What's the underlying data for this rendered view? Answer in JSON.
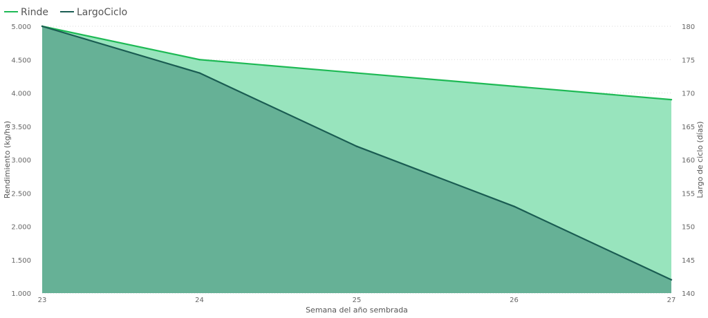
{
  "chart_data": {
    "type": "area",
    "x": [
      23,
      24,
      25,
      26,
      27
    ],
    "xlabel": "Semana del año sembrada",
    "xticks": [
      "23",
      "24",
      "25",
      "26",
      "27"
    ],
    "ylabel_left": "Rendimiento (kg/ha)",
    "ylabel_right": "Largo de ciclo (días)",
    "ylim_left": [
      1000,
      5000
    ],
    "ylim_right": [
      140,
      180
    ],
    "yticks_left": [
      "1.000",
      "1.500",
      "2.000",
      "2.500",
      "3.000",
      "3.500",
      "4.000",
      "4.500",
      "5.000"
    ],
    "yticks_right": [
      "140",
      "145",
      "150",
      "155",
      "160",
      "165",
      "170",
      "175",
      "180"
    ],
    "grid": true,
    "legend_position": "top-left",
    "series": [
      {
        "name": "Rinde",
        "axis": "left",
        "values": [
          5000,
          4500,
          4300,
          4100,
          3900
        ],
        "line_color": "#1db954",
        "fill_color": "#98e4bd"
      },
      {
        "name": "LargoCiclo",
        "axis": "right",
        "values": [
          180,
          173,
          162,
          153,
          142
        ],
        "line_color": "#1a5c52",
        "fill_color": "#66b196"
      }
    ]
  }
}
